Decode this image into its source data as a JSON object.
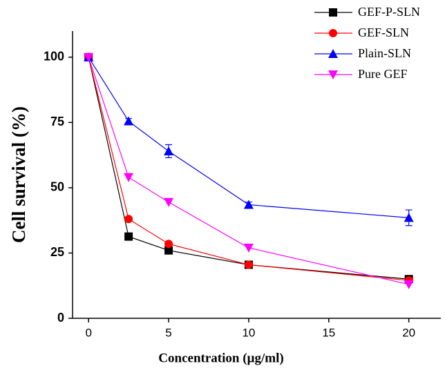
{
  "chart_data": {
    "type": "line",
    "x_label": "Concentration (µg/ml)",
    "y_label": "Cell survival (%)",
    "x": [
      0,
      2.5,
      5,
      10,
      20
    ],
    "xlim": [
      -1,
      22
    ],
    "xticks": [
      0,
      5,
      10,
      15,
      20
    ],
    "ylim": [
      0,
      110
    ],
    "yticks": [
      0,
      25,
      50,
      75,
      100
    ],
    "legend": "upper right",
    "series": [
      {
        "name": "GEF-P-SLN",
        "color": "#000000",
        "marker": "square",
        "values": [
          100,
          31.3,
          26,
          20.5,
          15
        ]
      },
      {
        "name": "GEF-SLN",
        "color": "#ff0000",
        "marker": "circle",
        "values": [
          100,
          38,
          28.5,
          20.5,
          14.5
        ]
      },
      {
        "name": "Plain-SLN",
        "color": "#0000ff",
        "marker": "triangle-up",
        "values": [
          100,
          75.5,
          64,
          43.5,
          38.5
        ],
        "errors": [
          0.5,
          1,
          2.5,
          1,
          3
        ]
      },
      {
        "name": "Pure GEF",
        "color": "#ff00ff",
        "marker": "triangle-down",
        "values": [
          100,
          54,
          44.5,
          27,
          13
        ]
      }
    ]
  }
}
